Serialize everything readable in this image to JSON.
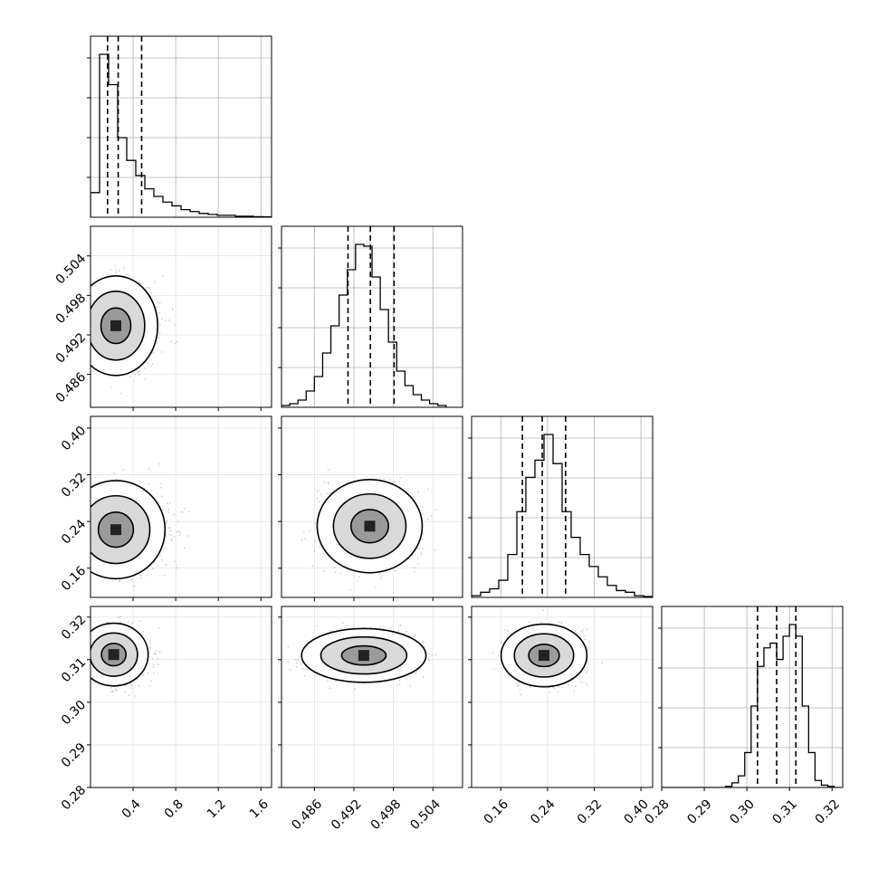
{
  "chart_data": {
    "type": "corner",
    "grid": true,
    "parameters": [
      {
        "range": [
          0.0,
          1.7
        ],
        "ticks": [
          {
            "value": 0.4,
            "label": "0.4"
          },
          {
            "value": 0.8,
            "label": "0.8"
          },
          {
            "value": 1.2,
            "label": "1.2"
          },
          {
            "value": 1.6,
            "label": "1.6"
          }
        ],
        "quantiles": [
          0.16,
          0.26,
          0.48
        ],
        "histogram": {
          "bins": [
            0.0,
            0.085,
            0.17,
            0.255,
            0.34,
            0.425,
            0.51,
            0.595,
            0.68,
            0.765,
            0.85,
            0.935,
            1.02,
            1.105,
            1.19,
            1.275,
            1.36,
            1.445,
            1.53,
            1.615,
            1.7
          ],
          "counts": [
            13,
            86,
            70,
            42,
            30,
            22,
            15,
            11,
            8,
            6,
            4,
            3,
            2,
            1.5,
            1,
            1,
            0.5,
            0.5,
            0.3,
            0.2
          ]
        }
      },
      {
        "range": [
          0.481,
          0.5085
        ],
        "ticks": [
          {
            "value": 0.486,
            "label": "0.486"
          },
          {
            "value": 0.492,
            "label": "0.492"
          },
          {
            "value": 0.498,
            "label": "0.498"
          },
          {
            "value": 0.504,
            "label": "0.504"
          }
        ],
        "quantiles": [
          0.4911,
          0.4945,
          0.4981
        ],
        "histogram": {
          "bins": [
            0.481,
            0.48225,
            0.4835,
            0.48475,
            0.486,
            0.48725,
            0.4885,
            0.48975,
            0.491,
            0.49225,
            0.4935,
            0.49475,
            0.496,
            0.49725,
            0.4985,
            0.49975,
            0.501,
            0.50225,
            0.5035,
            0.50475,
            0.506
          ],
          "counts": [
            1,
            2,
            4,
            9,
            17,
            30,
            45,
            62,
            76,
            90,
            89,
            72,
            54,
            36,
            20,
            12,
            7,
            4,
            2,
            1
          ]
        }
      },
      {
        "range": [
          0.11,
          0.42
        ],
        "ticks": [
          {
            "value": 0.16,
            "label": "0.16"
          },
          {
            "value": 0.24,
            "label": "0.24"
          },
          {
            "value": 0.32,
            "label": "0.32"
          },
          {
            "value": 0.4,
            "label": "0.40"
          }
        ],
        "quantiles": [
          0.197,
          0.231,
          0.271
        ],
        "histogram": {
          "bins": [
            0.11,
            0.1255,
            0.141,
            0.1565,
            0.172,
            0.1875,
            0.203,
            0.2185,
            0.234,
            0.2495,
            0.265,
            0.2805,
            0.296,
            0.3115,
            0.327,
            0.3425,
            0.358,
            0.3735,
            0.389,
            0.4045,
            0.42
          ],
          "counts": [
            1,
            3,
            5,
            10,
            25,
            50,
            70,
            80,
            95,
            78,
            50,
            35,
            25,
            18,
            12,
            7,
            4,
            3,
            1,
            0.5
          ]
        }
      },
      {
        "range": [
          0.28,
          0.3225
        ],
        "ticks": [
          {
            "value": 0.28,
            "label": "0.28"
          },
          {
            "value": 0.29,
            "label": "0.29"
          },
          {
            "value": 0.3,
            "label": "0.30"
          },
          {
            "value": 0.31,
            "label": "0.31"
          },
          {
            "value": 0.32,
            "label": "0.32"
          }
        ],
        "quantiles": [
          0.3025,
          0.307,
          0.3115
        ],
        "histogram": {
          "bins": [
            0.28,
            0.2815,
            0.283,
            0.2845,
            0.286,
            0.2875,
            0.289,
            0.2905,
            0.292,
            0.2935,
            0.295,
            0.2965,
            0.298,
            0.2995,
            0.301,
            0.3025,
            0.304,
            0.3055,
            0.307,
            0.3085,
            0.31,
            0.3115,
            0.313,
            0.3145,
            0.316,
            0.3175,
            0.319,
            0.3205,
            0.322
          ],
          "counts": [
            0,
            0,
            0,
            0,
            0,
            0,
            0,
            0,
            0,
            0,
            0.5,
            2,
            5,
            15,
            35,
            52,
            60,
            62,
            55,
            65,
            70,
            65,
            35,
            15,
            3,
            1,
            0.5,
            0
          ]
        }
      }
    ],
    "pairs": [
      {
        "row": 1,
        "col": 0,
        "peak": [
          0.17,
          0.4934
        ],
        "sigma": [
          0.17,
          0.0036
        ],
        "levels": [
          0.35,
          2.0,
          5.0
        ]
      },
      {
        "row": 2,
        "col": 0,
        "peak": [
          0.17,
          0.226
        ],
        "sigma": [
          0.2,
          0.04
        ],
        "levels": [
          0.35,
          1.4,
          3.6
        ]
      },
      {
        "row": 2,
        "col": 1,
        "peak": [
          0.4944,
          0.232
        ],
        "sigma": [
          0.0038,
          0.038
        ],
        "levels": [
          0.4,
          1.6,
          4.0
        ]
      },
      {
        "row": 3,
        "col": 0,
        "peak": [
          0.15,
          0.3112
        ],
        "sigma": [
          0.14,
          0.0035
        ],
        "levels": [
          0.35,
          1.4,
          3.6
        ]
      },
      {
        "row": 3,
        "col": 1,
        "peak": [
          0.4935,
          0.311
        ],
        "sigma": [
          0.0045,
          0.003
        ],
        "levels": [
          0.4,
          1.6,
          4.0
        ]
      },
      {
        "row": 3,
        "col": 2,
        "peak": [
          0.234,
          0.311
        ],
        "sigma": [
          0.035,
          0.0035
        ],
        "levels": [
          0.4,
          1.6,
          4.0
        ]
      }
    ]
  }
}
